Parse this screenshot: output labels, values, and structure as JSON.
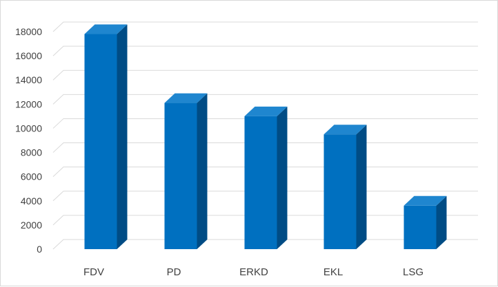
{
  "chart_data": {
    "type": "bar",
    "title": "",
    "xlabel": "",
    "ylabel": "",
    "categories": [
      "FDV",
      "PD",
      "ERKD",
      "EKL",
      "LSG"
    ],
    "values": [
      17800,
      12100,
      11000,
      9500,
      3600
    ],
    "ylim": [
      0,
      18000
    ],
    "yticks": [
      0,
      2000,
      4000,
      6000,
      8000,
      10000,
      12000,
      14000,
      16000,
      18000
    ],
    "grid": true,
    "legend": "none",
    "style": "3d-column",
    "colors": {
      "front": "#0070c0",
      "top": "#1f86cf",
      "side": "#004c85",
      "grid": "#d9d9d9",
      "text": "#404040"
    }
  }
}
